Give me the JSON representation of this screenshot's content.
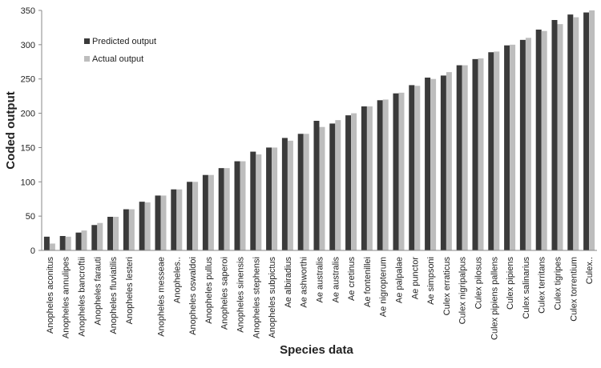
{
  "chart_data": {
    "type": "bar",
    "xlabel": "Species data",
    "ylabel": "Coded output",
    "categories": [
      "Anopheles aconitus",
      "Anopheles annulipes",
      "Anopheles bancroftii",
      "Anopheles farauti",
      "Anopheles fluviatilis",
      "Anopheles lesteri",
      null,
      "Anopheles messeae",
      "Anopheles..",
      "Anopheles oswaldoi",
      "Anopheles pullus",
      "Anopheles saperoi",
      "Anopheles sinensis",
      "Anopheles stephensi",
      "Anopheles subpictus",
      "Ae albiradius",
      "Ae ashworthi",
      "Ae australis",
      "Ae australis",
      "Ae cretinus",
      "Ae fontenillei",
      "Ae nigropterum",
      "Ae palpalae",
      "Ae punctor",
      "Ae simpsoni",
      "Culex erraticus",
      "Culex nigripalpus",
      "Culex pilosus",
      "Culex pipiens pallens",
      "Culex pipiens",
      "Culex salinarius",
      "Culex territans",
      "Culex tigripes",
      "Culex torrentium",
      "Culex.."
    ],
    "series": [
      {
        "name": "Predicted output",
        "color": "#3a3a3a",
        "values": [
          20,
          21,
          26,
          37,
          49,
          60,
          71,
          80,
          89,
          100,
          110,
          120,
          130,
          144,
          150,
          164,
          170,
          189,
          185,
          197,
          210,
          219,
          229,
          241,
          252,
          255,
          270,
          279,
          289,
          299,
          307,
          322,
          336,
          344,
          347
        ]
      },
      {
        "name": "Actual output",
        "color": "#bdbdbd",
        "values": [
          10,
          20,
          29,
          40,
          49,
          60,
          70,
          80,
          89,
          100,
          110,
          120,
          130,
          140,
          150,
          160,
          170,
          180,
          190,
          200,
          210,
          220,
          230,
          240,
          250,
          260,
          270,
          280,
          290,
          300,
          310,
          320,
          330,
          340,
          350
        ]
      }
    ],
    "ylim": [
      0,
      350
    ],
    "yticks": [
      0,
      50,
      100,
      150,
      200,
      250,
      300,
      350
    ],
    "grid": false
  }
}
